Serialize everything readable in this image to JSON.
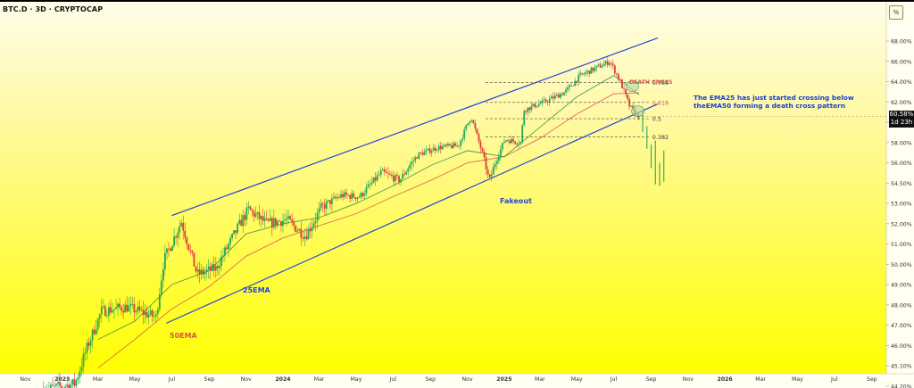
{
  "header": {
    "title": "BTC.D · 3D · CRYPTOCAP",
    "percent_button": "%"
  },
  "price_tag": {
    "value": "60.58%",
    "countdown": "1d 23h"
  },
  "annotations": {
    "death_cross": "DEATH CROSS",
    "fakeout": "Fakeout",
    "ema25": "25EMA",
    "ema50": "50EMA",
    "note": "The EMA25 has just started crossing below theEMA50 forming a death cross pattern"
  },
  "colors": {
    "background": "#ffff00",
    "bullish": "#26a65b",
    "bearish": "#e23b3b",
    "channel": "#2446d8",
    "ema25": "#2d8c4a",
    "ema50": "#d9534f",
    "annotation_text": "#1a3fcf",
    "death_cross_text": "#d9534f"
  },
  "chart_data": {
    "type": "candlestick",
    "title": "BTC.D · 3D · CRYPTOCAP",
    "ylim": [
      43.8,
      69.6
    ],
    "y_axis_position": "right",
    "y_ticks": [
      "68.00%",
      "66.00%",
      "64.00%",
      "62.00%",
      "60.00%",
      "58.00%",
      "56.00%",
      "54.50%",
      "53.00%",
      "52.00%",
      "51.00%",
      "50.00%",
      "49.00%",
      "48.00%",
      "47.00%",
      "46.00%",
      "45.10%",
      "44.20%"
    ],
    "y_tick_values": [
      68.0,
      66.0,
      64.0,
      62.0,
      60.0,
      58.0,
      56.0,
      54.5,
      53.0,
      52.0,
      51.0,
      50.0,
      49.0,
      48.0,
      47.0,
      46.0,
      45.1,
      44.2
    ],
    "x_ticks": [
      "Nov",
      "2023",
      "Mar",
      "May",
      "Jul",
      "Sep",
      "Nov",
      "2024",
      "Mar",
      "May",
      "Jul",
      "Sep",
      "Nov",
      "2025",
      "Mar",
      "May",
      "Jul",
      "Sep",
      "Nov",
      "2026",
      "Mar",
      "May",
      "Jul",
      "Sep"
    ],
    "x_tick_dates": [
      "2022-11-01",
      "2023-01-01",
      "2023-03-01",
      "2023-05-01",
      "2023-07-01",
      "2023-09-01",
      "2023-11-01",
      "2024-01-01",
      "2024-03-01",
      "2024-05-01",
      "2024-07-01",
      "2024-09-01",
      "2024-11-01",
      "2025-01-01",
      "2025-03-01",
      "2025-05-01",
      "2025-07-01",
      "2025-09-01",
      "2025-11-01",
      "2026-01-01",
      "2026-03-01",
      "2026-05-01",
      "2026-07-01",
      "2026-09-01"
    ],
    "price_path": {
      "dates": [
        "2022-12-01",
        "2023-01-25",
        "2023-02-10",
        "2023-03-10",
        "2023-04-20",
        "2023-06-08",
        "2023-06-21",
        "2023-07-20",
        "2023-08-15",
        "2023-09-15",
        "2023-10-25",
        "2023-11-08",
        "2023-12-08",
        "2024-01-10",
        "2024-02-10",
        "2024-03-08",
        "2024-04-10",
        "2024-05-10",
        "2024-06-15",
        "2024-07-15",
        "2024-08-15",
        "2024-09-15",
        "2024-10-20",
        "2024-11-10",
        "2024-12-01",
        "2024-12-10",
        "2025-01-05",
        "2025-02-01",
        "2025-02-05",
        "2025-03-15",
        "2025-04-15",
        "2025-05-10",
        "2025-06-10",
        "2025-06-28",
        "2025-07-15",
        "2025-07-30",
        "2025-08-12"
      ],
      "values": [
        44.0,
        44.3,
        45.6,
        47.7,
        47.9,
        47.4,
        50.2,
        52.1,
        49.5,
        49.8,
        52.0,
        52.7,
        52.0,
        52.2,
        51.4,
        52.8,
        53.6,
        53.5,
        55.3,
        54.7,
        56.8,
        57.5,
        57.7,
        60.6,
        56.5,
        54.6,
        58.3,
        58.0,
        61.2,
        62.1,
        63.0,
        64.6,
        65.5,
        66.0,
        64.0,
        61.6,
        60.6
      ]
    },
    "ema25_path": {
      "dates": [
        "2023-03-01",
        "2023-05-01",
        "2023-07-01",
        "2023-09-01",
        "2023-11-01",
        "2024-01-01",
        "2024-03-01",
        "2024-05-01",
        "2024-07-01",
        "2024-09-01",
        "2024-11-01",
        "2025-01-01",
        "2025-03-01",
        "2025-05-01",
        "2025-07-01",
        "2025-08-12"
      ],
      "values": [
        46.3,
        47.2,
        49.0,
        49.7,
        51.5,
        52.0,
        52.3,
        53.0,
        54.3,
        55.8,
        57.2,
        56.6,
        59.5,
        62.5,
        64.6,
        62.7
      ]
    },
    "ema50_path": {
      "dates": [
        "2023-03-01",
        "2023-05-01",
        "2023-07-01",
        "2023-09-01",
        "2023-11-01",
        "2024-01-01",
        "2024-03-01",
        "2024-05-01",
        "2024-07-01",
        "2024-09-01",
        "2024-11-01",
        "2025-01-01",
        "2025-03-01",
        "2025-05-01",
        "2025-07-01",
        "2025-08-12"
      ],
      "values": [
        45.0,
        46.3,
        47.8,
        48.9,
        50.4,
        51.3,
        51.9,
        52.5,
        53.5,
        54.7,
        56.0,
        56.6,
        58.4,
        60.8,
        62.8,
        62.9
      ]
    },
    "projection": {
      "dates": [
        "2025-08-18",
        "2025-08-25",
        "2025-09-01",
        "2025-09-08",
        "2025-09-15",
        "2025-09-22"
      ],
      "open": [
        61.0,
        59.4,
        57.6,
        57.8,
        55.2,
        56.8
      ],
      "close": [
        59.2,
        57.6,
        56.0,
        54.6,
        54.6,
        54.8
      ],
      "high": [
        61.2,
        59.6,
        57.8,
        58.2,
        56.0,
        57.2
      ],
      "low": [
        59.0,
        57.4,
        55.6,
        54.4,
        54.3,
        54.6
      ]
    },
    "channel": {
      "upper": {
        "dates": [
          "2023-07-01",
          "2025-09-12"
        ],
        "values": [
          52.4,
          68.3
        ]
      },
      "lower": {
        "dates": [
          "2023-06-22",
          "2025-09-12"
        ],
        "values": [
          47.1,
          61.8
        ]
      }
    },
    "fib_levels": [
      {
        "label": "0.786",
        "value": 63.9
      },
      {
        "label": "0.618",
        "value": 61.95
      },
      {
        "label": "0.5",
        "value": 60.35
      },
      {
        "label": "0.382",
        "value": 58.55
      }
    ],
    "current_value": 60.58
  }
}
